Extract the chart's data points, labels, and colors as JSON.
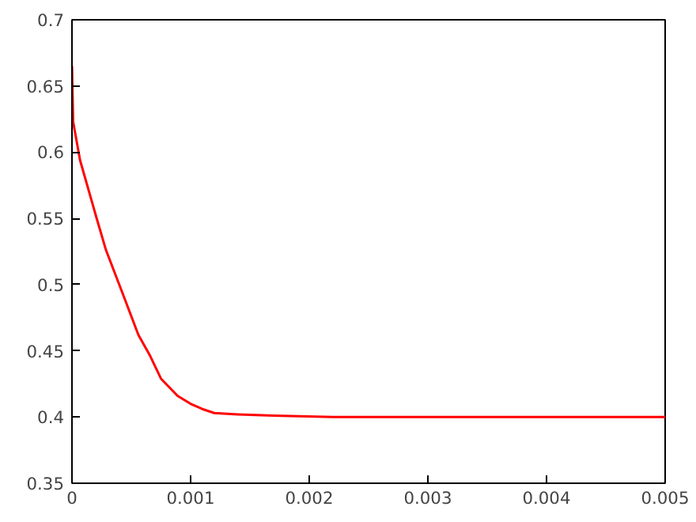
{
  "chart_data": {
    "type": "line",
    "x": [
      0,
      1e-05,
      6.8e-05,
      0.000205,
      0.000287,
      0.00042,
      0.00056,
      0.00066,
      0.00075,
      0.00089,
      0.001,
      0.0011,
      0.0012,
      0.0014,
      0.0017,
      0.0022,
      0.003,
      0.004,
      0.005
    ],
    "series": [
      {
        "color": "#ff0000",
        "values": [
          0.665,
          0.623,
          0.594,
          0.551,
          0.526,
          0.495,
          0.462,
          0.446,
          0.429,
          0.416,
          0.41,
          0.406,
          0.403,
          0.402,
          0.401,
          0.4,
          0.4,
          0.4,
          0.4
        ]
      }
    ],
    "xlim": [
      0,
      0.005
    ],
    "ylim": [
      0.35,
      0.7
    ],
    "xticks": [
      0,
      0.001,
      0.002,
      0.003,
      0.004,
      0.005
    ],
    "yticks": [
      0.35,
      0.4,
      0.45,
      0.5,
      0.55,
      0.6,
      0.65,
      0.7
    ],
    "grid": false,
    "marker": "none",
    "line_style": "solid"
  }
}
